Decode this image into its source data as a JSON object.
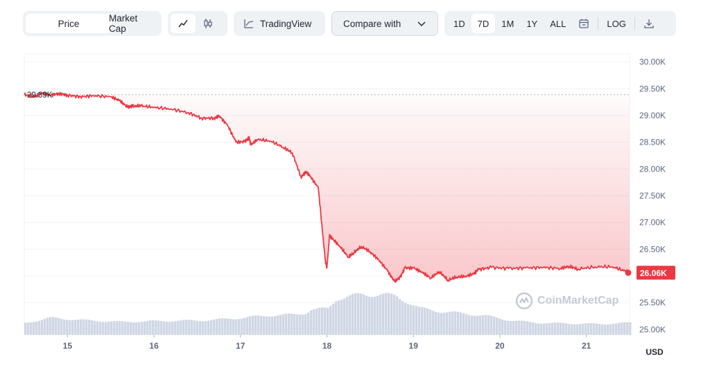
{
  "toolbar": {
    "price_label": "Price",
    "market_cap_label": "Market Cap",
    "line_icon": "line-chart-icon",
    "candle_icon": "candlestick-icon",
    "tradingview_label": "TradingView",
    "compare_label": "Compare with",
    "ranges": [
      "1D",
      "7D",
      "1M",
      "1Y",
      "ALL"
    ],
    "active_range": "7D",
    "calendar_icon": "calendar-icon",
    "log_label": "LOG",
    "download_icon": "download-icon"
  },
  "watermark": "CoinMarketCap",
  "colors": {
    "line": "#ea3943",
    "fill_top": "rgba(234,57,67,0.02)",
    "fill_bottom": "rgba(234,57,67,0.28)",
    "green": "#16c784",
    "volume": "#cfd6e4",
    "grid": "#eff2f5",
    "badge": "#ea3943"
  },
  "chart_data": {
    "type": "line",
    "currency": "USD",
    "x_ticks": [
      "15",
      "16",
      "17",
      "18",
      "19",
      "20",
      "21"
    ],
    "y_ticks": [
      "30.00K",
      "29.50K",
      "29.00K",
      "28.50K",
      "28.00K",
      "27.50K",
      "27.00K",
      "26.50K",
      "26.00K",
      "25.50K",
      "25.00K"
    ],
    "ylim": [
      24900,
      30150
    ],
    "xlim": [
      14.5,
      21.5
    ],
    "open_label": "29.39K",
    "open_value": 29390,
    "current_label": "26.06K",
    "current_value": 26060,
    "series": [
      {
        "x": [
          14.5,
          14.62,
          14.7,
          14.8,
          14.9,
          15.0,
          15.15,
          15.3,
          15.5,
          15.6,
          15.7,
          15.75,
          15.85,
          16.0,
          16.2,
          16.4,
          16.55,
          16.7,
          16.75,
          16.85,
          16.95,
          17.05,
          17.1,
          17.12,
          17.2,
          17.35,
          17.5,
          17.6,
          17.7,
          17.76,
          17.8,
          17.9,
          17.98,
          18.0,
          18.03,
          18.06,
          18.15,
          18.25,
          18.3,
          18.4,
          18.5,
          18.6,
          18.7,
          18.78,
          18.85,
          18.9,
          19.0,
          19.1,
          19.2,
          19.3,
          19.4,
          19.5,
          19.6,
          19.7,
          19.75,
          19.9,
          20.1,
          20.3,
          20.5,
          20.7,
          20.8,
          20.9,
          21.1,
          21.3,
          21.45,
          21.5
        ],
        "y": [
          29390,
          29350,
          29420,
          29380,
          29410,
          29380,
          29350,
          29370,
          29350,
          29280,
          29150,
          29170,
          29180,
          29150,
          29120,
          29050,
          28950,
          28950,
          29000,
          28820,
          28500,
          28510,
          28580,
          28450,
          28550,
          28520,
          28400,
          28300,
          27850,
          27950,
          27880,
          27650,
          26300,
          26150,
          26750,
          26700,
          26550,
          26350,
          26420,
          26550,
          26450,
          26300,
          26100,
          25900,
          25980,
          26150,
          26150,
          26070,
          25960,
          26080,
          25920,
          25980,
          25990,
          26040,
          26120,
          26160,
          26140,
          26150,
          26160,
          26140,
          26180,
          26130,
          26170,
          26170,
          26090,
          26060
        ]
      }
    ],
    "volume": {
      "x": [
        14.5,
        14.8,
        15.2,
        15.6,
        16.0,
        16.6,
        17.0,
        17.3,
        17.6,
        17.75,
        17.8,
        18.0,
        18.1,
        18.4,
        18.6,
        18.8,
        18.95,
        19.05,
        19.3,
        19.8,
        20.1,
        20.4,
        20.8,
        21.2,
        21.5
      ],
      "values": [
        0.3,
        0.42,
        0.36,
        0.32,
        0.34,
        0.36,
        0.42,
        0.48,
        0.5,
        0.55,
        0.62,
        0.65,
        0.9,
        1.0,
        1.0,
        0.95,
        0.78,
        0.66,
        0.58,
        0.48,
        0.36,
        0.3,
        0.28,
        0.27,
        0.3
      ]
    }
  }
}
